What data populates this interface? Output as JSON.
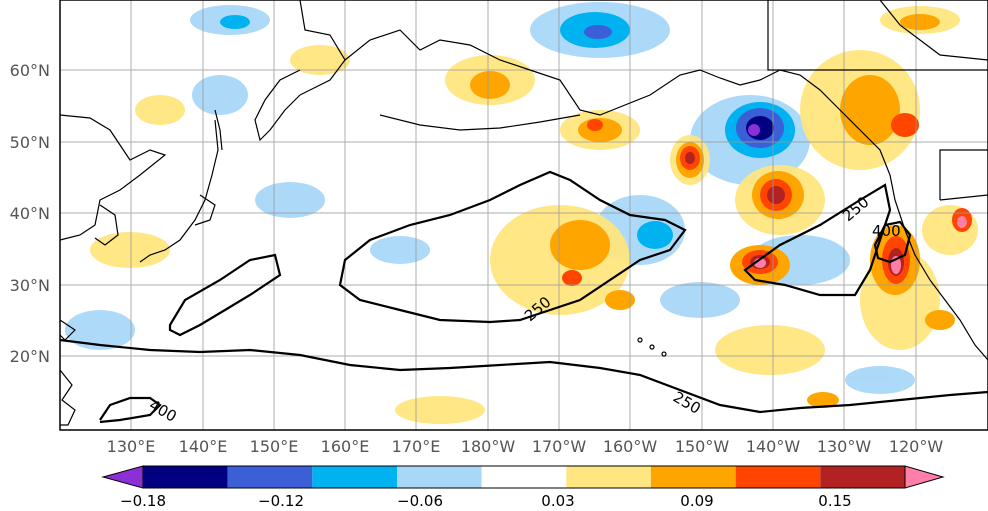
{
  "map": {
    "lat_labels": [
      "60°N",
      "50°N",
      "40°N",
      "30°N",
      "20°N"
    ],
    "lon_labels": [
      "130°E",
      "140°E",
      "150°E",
      "160°E",
      "170°E",
      "180°W",
      "170°W",
      "160°W",
      "150°W",
      "140°W",
      "130°W",
      "120°W"
    ],
    "contour_labels": [
      "250",
      "250",
      "400",
      "250",
      "400"
    ]
  },
  "colorbar": {
    "tick_labels": [
      "−0.18",
      "−0.12",
      "−0.06",
      "0.03",
      "0.09",
      "0.15"
    ],
    "colors": [
      "#8b2fd6",
      "#000080",
      "#3b5fd6",
      "#00b2f0",
      "#a8d8f8",
      "#ffffff",
      "#ffe680",
      "#ffa500",
      "#ff4500",
      "#b22222",
      "#ff7fa8"
    ]
  }
}
